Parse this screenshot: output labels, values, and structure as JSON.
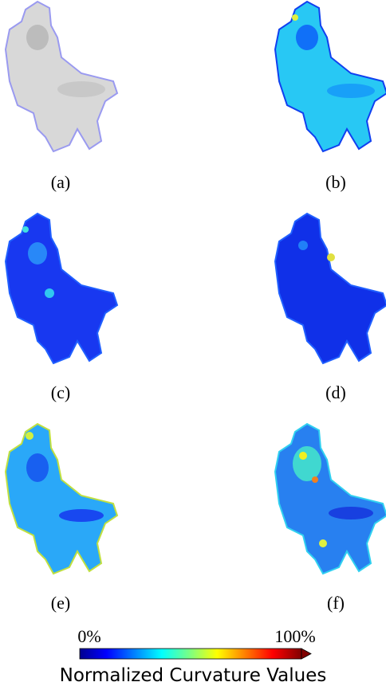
{
  "panels": [
    {
      "label": "(a)"
    },
    {
      "label": "(b)"
    },
    {
      "label": "(c)"
    },
    {
      "label": "(d)"
    },
    {
      "label": "(e)"
    },
    {
      "label": "(f)"
    }
  ],
  "colorbar": {
    "min_label": "0%",
    "max_label": "100%",
    "title": "Normalized Curvature Values"
  }
}
